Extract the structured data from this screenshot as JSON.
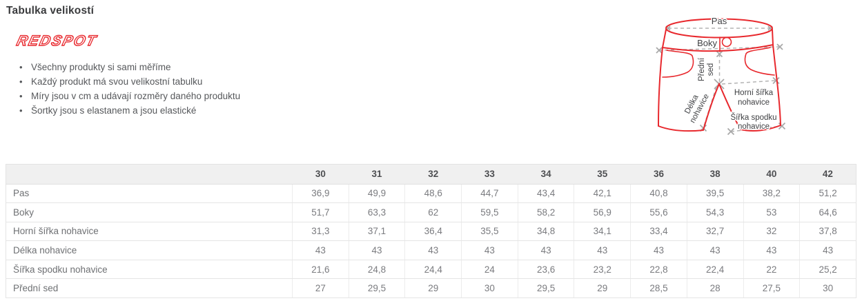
{
  "page": {
    "heading": "Tabulka velikostí"
  },
  "brand": {
    "logo_text": "REDSPOT"
  },
  "colors": {
    "accent_red": "#e8282d",
    "measure_gray": "#b3b3b3",
    "mark_gray": "#a9a9a9"
  },
  "notes": {
    "items": [
      "Všechny produkty si sami měříme",
      "Každý produkt má svou velikostní tabulku",
      "Míry jsou v cm a udávají rozměry daného produktu",
      "Šortky jsou s elastanem a jsou elastické"
    ]
  },
  "diagram": {
    "labels": {
      "pas": "Pas",
      "boky": "Boky",
      "predni_line1": "Přední",
      "predni_line2": "sed",
      "delka_line1": "Délka",
      "delka_line2": "nohavice",
      "horni_line1": "Horní šířka",
      "horni_line2": "nohavice",
      "spodek_line1": "Šířka spodku",
      "spodek_line2": "nohavice"
    }
  },
  "size_table": {
    "sizes": [
      "30",
      "31",
      "32",
      "33",
      "34",
      "35",
      "36",
      "38",
      "40",
      "42"
    ],
    "rows": [
      {
        "label": "Pas",
        "values": [
          "36,9",
          "49,9",
          "48,6",
          "44,7",
          "43,4",
          "42,1",
          "40,8",
          "39,5",
          "38,2",
          "51,2"
        ]
      },
      {
        "label": "Boky",
        "values": [
          "51,7",
          "63,3",
          "62",
          "59,5",
          "58,2",
          "56,9",
          "55,6",
          "54,3",
          "53",
          "64,6"
        ]
      },
      {
        "label": "Horní šířka nohavice",
        "values": [
          "31,3",
          "37,1",
          "36,4",
          "35,5",
          "34,8",
          "34,1",
          "33,4",
          "32,7",
          "32",
          "37,8"
        ]
      },
      {
        "label": "Délka nohavice",
        "values": [
          "43",
          "43",
          "43",
          "43",
          "43",
          "43",
          "43",
          "43",
          "43",
          "43"
        ]
      },
      {
        "label": "Šířka spodku nohavice",
        "values": [
          "21,6",
          "24,8",
          "24,4",
          "24",
          "23,6",
          "23,2",
          "22,8",
          "22,4",
          "22",
          "25,2"
        ]
      },
      {
        "label": "Přední sed",
        "values": [
          "27",
          "29,5",
          "29",
          "30",
          "29,5",
          "29",
          "28,5",
          "28",
          "27,5",
          "30"
        ]
      }
    ]
  }
}
